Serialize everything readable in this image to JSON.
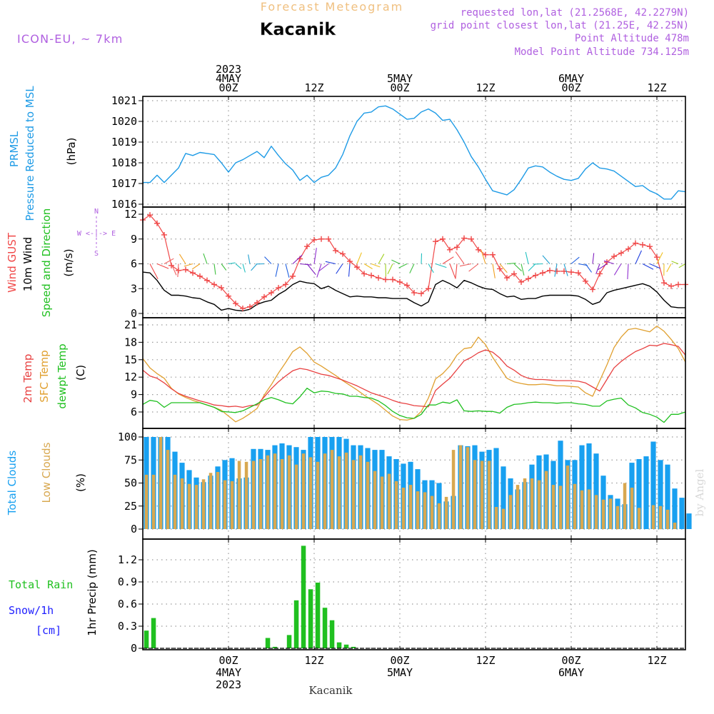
{
  "header": {
    "product": "Forecast Meteogram",
    "station": "Kacanik",
    "model": "ICON-EU, ~ 7km",
    "requested": "requested lon,lat (21.2568E, 42.2279N)",
    "closest": "grid point closest lon,lat (21.25E, 42.25N)",
    "altitude": "Point Altitude 478m",
    "model_altitude": "Model Point Altitude 734.125m",
    "credit": "by Angel",
    "footer": "Kacanik"
  },
  "time_axis": {
    "ticks": [
      {
        "t": 12,
        "top": [
          "2023",
          "4MAY",
          "00Z"
        ],
        "bottom": [
          "00Z",
          "4MAY",
          "2023"
        ]
      },
      {
        "t": 24,
        "top": [
          "12Z"
        ],
        "bottom": [
          "12Z"
        ]
      },
      {
        "t": 36,
        "top": [
          "5MAY",
          "00Z"
        ],
        "bottom": [
          "00Z",
          "5MAY"
        ]
      },
      {
        "t": 48,
        "top": [
          "12Z"
        ],
        "bottom": [
          "12Z"
        ]
      },
      {
        "t": 60,
        "top": [
          "6MAY",
          "00Z"
        ],
        "bottom": [
          "00Z",
          "6MAY"
        ]
      },
      {
        "t": 72,
        "top": [
          "12Z"
        ],
        "bottom": [
          "12Z"
        ]
      }
    ],
    "range": [
      0,
      76
    ]
  },
  "panels": {
    "pressure": {
      "labels": [
        "PRMSL",
        "Pressure Reduced to MSL",
        "(hPa)"
      ],
      "yticks": [
        "1016",
        "1017",
        "1018",
        "1019",
        "1020",
        "1021"
      ]
    },
    "wind": {
      "labels": [
        "Wind GUST",
        "10m Wind",
        "Speed and Direction",
        "(m/s)"
      ],
      "compass": [
        "N",
        "W <-|-> E",
        "S"
      ],
      "yticks": [
        "0",
        "3",
        "6",
        "9",
        "12"
      ]
    },
    "temp": {
      "labels": [
        "2m Temp",
        "SFC Temp",
        "dewpt Temp",
        "(C)"
      ],
      "yticks": [
        "6",
        "9",
        "12",
        "15",
        "18",
        "21"
      ]
    },
    "clouds": {
      "labels": [
        "Total Clouds",
        "Low Clouds",
        "(%)"
      ],
      "yticks": [
        "0",
        "25",
        "50",
        "75",
        "100"
      ]
    },
    "precip": {
      "labels": [
        "Total  Rain",
        "Snow/1h",
        "[cm]",
        "1hr Precip (mm)"
      ],
      "yticks": [
        "0",
        "0.3",
        "0.6",
        "0.9",
        "1.2"
      ]
    }
  },
  "colors": {
    "pressure": "#1e9be6",
    "gust": "#f04848",
    "wind": "#000000",
    "t2m": "#e84040",
    "tsfc": "#e0a030",
    "dewpt": "#20c020",
    "total_clouds": "#18a0f0",
    "low_clouds": "#d8a850",
    "rain": "#20c020",
    "grid": "#9a9a9a",
    "label_purple": "#b060e0",
    "label_orange": "#f0c080",
    "label_blue": "#2020ff"
  },
  "chart_data": [
    {
      "type": "line",
      "ylabel": "PRMSL Pressure Reduced to MSL (hPa)",
      "ylim": [
        1016,
        1021.2
      ],
      "x": [
        0,
        1,
        2,
        3,
        4,
        5,
        6,
        7,
        8,
        9,
        10,
        11,
        12,
        13,
        14,
        15,
        16,
        17,
        18,
        19,
        20,
        21,
        22,
        23,
        24,
        25,
        26,
        27,
        28,
        29,
        30,
        31,
        32,
        33,
        34,
        35,
        36,
        37,
        38,
        39,
        40,
        41,
        42,
        43,
        44,
        45,
        46,
        47,
        48,
        49,
        50,
        51,
        52,
        53,
        54,
        55,
        56,
        57,
        58,
        59,
        60,
        61,
        62,
        63,
        64,
        65,
        66,
        67,
        68,
        69,
        70,
        71,
        72,
        73,
        74,
        75,
        76
      ],
      "series": [
        {
          "name": "PRMSL",
          "values": [
            1017.05,
            1017.05,
            1017.4,
            1017.05,
            1017.4,
            1017.75,
            1018.45,
            1018.35,
            1018.5,
            1018.45,
            1018.4,
            1018.0,
            1017.55,
            1018.0,
            1018.15,
            1018.35,
            1018.55,
            1018.25,
            1018.8,
            1018.35,
            1017.95,
            1017.65,
            1017.15,
            1017.4,
            1017.05,
            1017.3,
            1017.4,
            1017.75,
            1018.4,
            1019.3,
            1020.0,
            1020.4,
            1020.45,
            1020.7,
            1020.75,
            1020.6,
            1020.35,
            1020.1,
            1020.15,
            1020.45,
            1020.6,
            1020.4,
            1020.05,
            1020.1,
            1019.6,
            1019.0,
            1018.3,
            1017.8,
            1017.2,
            1016.65,
            1016.55,
            1016.45,
            1016.7,
            1017.2,
            1017.75,
            1017.85,
            1017.8,
            1017.55,
            1017.35,
            1017.2,
            1017.15,
            1017.25,
            1017.7,
            1018.0,
            1017.75,
            1017.7,
            1017.6,
            1017.35,
            1017.1,
            1016.85,
            1016.9,
            1016.65,
            1016.5,
            1016.25,
            1016.25,
            1016.65,
            1016.6
          ]
        }
      ]
    },
    {
      "type": "line",
      "ylabel": "Wind GUST / 10m Wind Speed and Direction (m/s)",
      "ylim": [
        0,
        12.5
      ],
      "x": [
        0,
        1,
        2,
        3,
        4,
        5,
        6,
        7,
        8,
        9,
        10,
        11,
        12,
        13,
        14,
        15,
        16,
        17,
        18,
        19,
        20,
        21,
        22,
        23,
        24,
        25,
        26,
        27,
        28,
        29,
        30,
        31,
        32,
        33,
        34,
        35,
        36,
        37,
        38,
        39,
        40,
        41,
        42,
        43,
        44,
        45,
        46,
        47,
        48,
        49,
        50,
        51,
        52,
        53,
        54,
        55,
        56,
        57,
        58,
        59,
        60,
        61,
        62,
        63,
        64,
        65,
        66,
        67,
        68,
        69,
        70,
        71,
        72,
        73,
        74,
        75,
        76
      ],
      "series": [
        {
          "name": "Wind GUST",
          "values": [
            11.3,
            11.9,
            10.9,
            9.5,
            5.8,
            5.2,
            5.3,
            4.9,
            4.5,
            4.0,
            3.5,
            3.1,
            2.1,
            1.2,
            0.6,
            0.8,
            1.3,
            2.0,
            2.5,
            3.1,
            3.5,
            4.5,
            6.6,
            8.1,
            8.9,
            9.0,
            9.0,
            7.6,
            7.2,
            6.3,
            5.6,
            4.8,
            4.6,
            4.3,
            4.1,
            4.1,
            3.8,
            3.4,
            2.5,
            2.4,
            3.0,
            8.7,
            9.0,
            7.7,
            8.0,
            9.1,
            9.0,
            7.7,
            7.1,
            7.1,
            5.4,
            4.3,
            4.8,
            3.8,
            4.2,
            4.6,
            4.9,
            5.2,
            5.1,
            5.1,
            5.0,
            4.9,
            3.9,
            2.9,
            4.8,
            6.2,
            6.9,
            7.3,
            7.8,
            8.5,
            8.3,
            8.1,
            6.8,
            3.7,
            3.3,
            3.5,
            3.5
          ]
        },
        {
          "name": "10m Wind",
          "values": [
            5.0,
            4.9,
            4.0,
            2.8,
            2.2,
            2.2,
            2.1,
            1.9,
            1.8,
            1.4,
            1.1,
            0.4,
            0.6,
            0.4,
            0.3,
            0.5,
            1.1,
            1.4,
            1.6,
            2.3,
            2.8,
            3.5,
            3.9,
            3.7,
            3.6,
            3.0,
            3.3,
            2.8,
            2.4,
            2.0,
            2.1,
            2.0,
            2.0,
            1.9,
            1.9,
            1.8,
            1.8,
            1.8,
            1.3,
            0.9,
            1.4,
            3.5,
            4.0,
            3.6,
            3.1,
            4.0,
            3.7,
            3.3,
            3.0,
            2.9,
            2.4,
            2.0,
            2.1,
            1.7,
            1.8,
            1.8,
            2.1,
            2.2,
            2.2,
            2.2,
            2.2,
            2.1,
            1.7,
            1.1,
            1.4,
            2.5,
            2.8,
            3.0,
            3.2,
            3.4,
            3.6,
            3.3,
            2.6,
            1.6,
            0.8,
            0.7,
            0.7
          ]
        }
      ]
    },
    {
      "type": "line",
      "ylabel": "2m Temp / SFC Temp / dewpt Temp (C)",
      "ylim": [
        4,
        21.5
      ],
      "x": [
        0,
        1,
        2,
        3,
        4,
        5,
        6,
        7,
        8,
        9,
        10,
        11,
        12,
        13,
        14,
        15,
        16,
        17,
        18,
        19,
        20,
        21,
        22,
        23,
        24,
        25,
        26,
        27,
        28,
        29,
        30,
        31,
        32,
        33,
        34,
        35,
        36,
        37,
        38,
        39,
        40,
        41,
        42,
        43,
        44,
        45,
        46,
        47,
        48,
        49,
        50,
        51,
        52,
        53,
        54,
        55,
        56,
        57,
        58,
        59,
        60,
        61,
        62,
        63,
        64,
        65,
        66,
        67,
        68,
        69,
        70,
        71,
        72,
        73,
        74,
        75,
        76
      ],
      "series": [
        {
          "name": "2m Temp",
          "values": [
            13.2,
            12.2,
            11.8,
            11.0,
            10.0,
            9.2,
            8.7,
            8.3,
            7.9,
            7.6,
            7.2,
            7.1,
            6.9,
            7.0,
            6.8,
            7.1,
            7.2,
            8.6,
            10.0,
            11.2,
            12.2,
            13.1,
            13.5,
            13.3,
            12.9,
            12.5,
            12.3,
            11.9,
            11.5,
            11.0,
            10.5,
            9.9,
            9.3,
            8.9,
            8.5,
            8.0,
            7.6,
            7.4,
            7.1,
            7.0,
            6.9,
            9.7,
            10.8,
            11.8,
            13.3,
            14.8,
            15.4,
            16.2,
            16.7,
            16.3,
            15.3,
            13.9,
            13.2,
            12.3,
            11.8,
            11.6,
            11.6,
            11.5,
            11.4,
            11.4,
            11.4,
            11.3,
            11.0,
            10.3,
            9.6,
            11.6,
            13.6,
            14.7,
            15.6,
            16.4,
            16.9,
            17.5,
            17.4,
            17.8,
            17.6,
            17.3,
            15.8
          ]
        },
        {
          "name": "SFC Temp",
          "values": [
            15.2,
            13.6,
            12.6,
            11.8,
            10.1,
            9.1,
            8.5,
            8.0,
            7.6,
            7.2,
            6.8,
            6.3,
            5.3,
            4.3,
            4.9,
            5.7,
            6.6,
            8.9,
            10.7,
            12.7,
            14.5,
            16.4,
            17.2,
            16.1,
            14.6,
            13.9,
            13.1,
            12.3,
            11.4,
            10.6,
            9.8,
            8.9,
            8.1,
            7.3,
            6.3,
            5.3,
            4.7,
            4.6,
            4.9,
            6.1,
            8.4,
            11.7,
            12.6,
            13.9,
            15.8,
            16.9,
            17.1,
            18.9,
            17.6,
            15.4,
            13.6,
            11.8,
            11.2,
            10.9,
            10.7,
            10.7,
            10.8,
            10.7,
            10.5,
            10.5,
            10.4,
            10.3,
            9.3,
            8.7,
            11.4,
            14.1,
            17.1,
            18.9,
            20.2,
            20.4,
            20.1,
            19.8,
            20.8,
            19.9,
            18.5,
            16.9,
            14.6
          ]
        },
        {
          "name": "dewpt Temp",
          "values": [
            7.3,
            8.0,
            7.8,
            6.8,
            7.6,
            7.6,
            7.6,
            7.6,
            7.6,
            7.2,
            6.8,
            6.1,
            6.0,
            5.9,
            6.2,
            6.8,
            7.4,
            8.1,
            8.5,
            8.1,
            7.6,
            7.4,
            8.6,
            10.1,
            9.3,
            9.6,
            9.5,
            9.2,
            9.1,
            8.7,
            8.7,
            8.5,
            8.4,
            7.9,
            7.1,
            6.1,
            5.4,
            5.0,
            4.9,
            5.6,
            7.2,
            7.2,
            7.7,
            7.5,
            8.1,
            6.2,
            6.1,
            6.2,
            6.1,
            6.1,
            5.8,
            6.8,
            7.3,
            7.4,
            7.6,
            7.7,
            7.6,
            7.6,
            7.5,
            7.6,
            7.6,
            7.4,
            7.3,
            7.0,
            7.0,
            7.9,
            8.2,
            8.4,
            7.2,
            6.7,
            5.9,
            5.6,
            5.1,
            4.2,
            5.6,
            5.6,
            6.0
          ]
        }
      ]
    },
    {
      "type": "bar",
      "ylabel": "Total Clouds / Low Clouds (%)",
      "ylim": [
        0,
        100
      ],
      "x": [
        0,
        1,
        2,
        3,
        4,
        5,
        6,
        7,
        8,
        9,
        10,
        11,
        12,
        13,
        14,
        15,
        16,
        17,
        18,
        19,
        20,
        21,
        22,
        23,
        24,
        25,
        26,
        27,
        28,
        29,
        30,
        31,
        32,
        33,
        34,
        35,
        36,
        37,
        38,
        39,
        40,
        41,
        42,
        43,
        44,
        45,
        46,
        47,
        48,
        49,
        50,
        51,
        52,
        53,
        54,
        55,
        56,
        57,
        58,
        59,
        60,
        61,
        62,
        63,
        64,
        65,
        66,
        67,
        68,
        69,
        70,
        71,
        72,
        73,
        74,
        75,
        76
      ],
      "series": [
        {
          "name": "Total Clouds",
          "values": [
            100,
            100,
            100,
            100,
            84,
            72,
            64,
            56,
            51,
            58,
            68,
            75,
            77,
            55,
            56,
            87,
            87,
            86,
            91,
            93,
            91,
            89,
            86,
            100,
            100,
            100,
            100,
            100,
            98,
            91,
            91,
            88,
            86,
            86,
            79,
            76,
            71,
            73,
            65,
            53,
            53,
            50,
            30,
            36,
            91,
            90,
            91,
            84,
            86,
            88,
            68,
            55,
            43,
            51,
            70,
            80,
            81,
            74,
            96,
            75,
            75,
            91,
            93,
            82,
            58,
            37,
            33,
            27,
            72,
            76,
            79,
            95,
            75,
            70,
            44,
            34,
            17
          ]
        },
        {
          "name": "Low Clouds",
          "values": [
            59,
            59,
            100,
            86,
            59,
            55,
            49,
            48,
            54,
            61,
            62,
            53,
            52,
            74,
            73,
            74,
            76,
            80,
            82,
            76,
            80,
            70,
            82,
            78,
            73,
            82,
            86,
            79,
            83,
            75,
            80,
            73,
            63,
            57,
            60,
            52,
            45,
            48,
            41,
            40,
            36,
            28,
            35,
            86,
            91,
            89,
            75,
            74,
            74,
            24,
            22,
            37,
            48,
            55,
            55,
            53,
            63,
            48,
            47,
            69,
            49,
            42,
            43,
            37,
            32,
            33,
            25,
            50,
            45,
            23,
            0,
            26,
            25,
            21,
            7,
            0,
            0
          ]
        }
      ]
    },
    {
      "type": "bar",
      "ylabel": "1hr Precip (mm)",
      "ylim": [
        0,
        1.4
      ],
      "x": [
        0,
        1,
        2,
        3,
        4,
        5,
        6,
        7,
        8,
        9,
        10,
        11,
        12,
        13,
        14,
        15,
        16,
        17,
        18,
        19,
        20,
        21,
        22,
        23,
        24,
        25,
        26,
        27,
        28,
        29,
        30
      ],
      "series": [
        {
          "name": "Total Rain",
          "values": [
            0.24,
            0.41,
            0,
            0,
            0,
            0,
            0,
            0,
            0,
            0,
            0,
            0,
            0,
            0,
            0,
            0,
            0,
            0.14,
            0.02,
            0,
            0.18,
            0.65,
            1.39,
            0.8,
            0.89,
            0.55,
            0.38,
            0.08,
            0.05,
            0.02,
            0
          ]
        }
      ]
    }
  ]
}
